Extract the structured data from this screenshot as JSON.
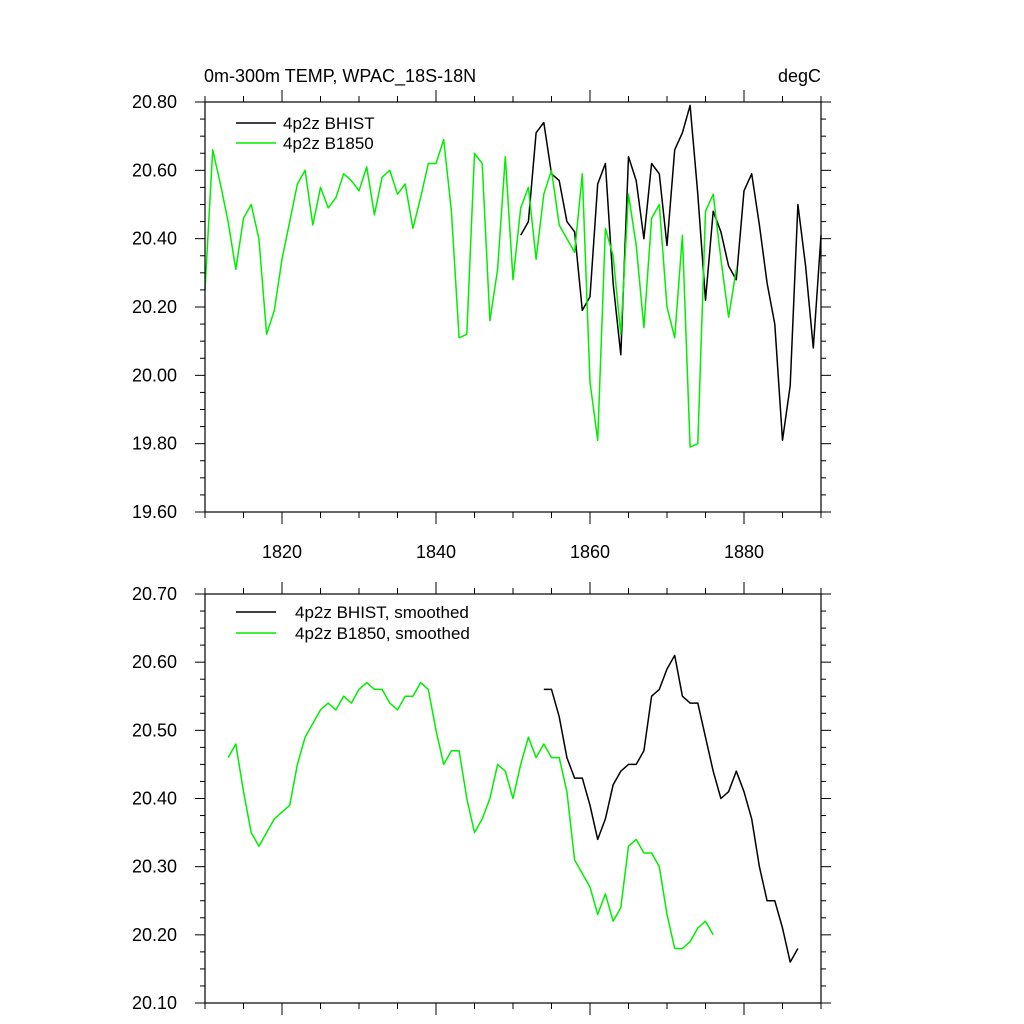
{
  "chart_data": [
    {
      "type": "line",
      "title_left": "0m-300m TEMP, WPAC_18S-18N",
      "title_right": "degC",
      "xlim": [
        1810,
        1890
      ],
      "ylim": [
        19.6,
        20.8
      ],
      "x_ticks": [
        1820,
        1840,
        1860,
        1880
      ],
      "x_tick_labels": [
        "1820",
        "1840",
        "1860",
        "1880"
      ],
      "y_ticks": [
        19.6,
        19.8,
        20.0,
        20.2,
        20.4,
        20.6,
        20.8
      ],
      "y_tick_labels": [
        "19.60",
        "19.80",
        "20.00",
        "20.20",
        "20.40",
        "20.60",
        "20.80"
      ],
      "legend_position": "top-left",
      "series": [
        {
          "name": "4p2z BHIST",
          "color": "#000000",
          "x": [
            1851,
            1852,
            1853,
            1854,
            1855,
            1856,
            1857,
            1858,
            1859,
            1860,
            1861,
            1862,
            1863,
            1864,
            1865,
            1866,
            1867,
            1868,
            1869,
            1870,
            1871,
            1872,
            1873,
            1874,
            1875,
            1876,
            1877,
            1878,
            1879,
            1880,
            1881,
            1882,
            1883,
            1884,
            1885,
            1886,
            1887,
            1888,
            1889,
            1890
          ],
          "y": [
            20.41,
            20.45,
            20.71,
            20.74,
            20.59,
            20.57,
            20.45,
            20.42,
            20.19,
            20.23,
            20.56,
            20.62,
            20.27,
            20.06,
            20.64,
            20.57,
            20.4,
            20.62,
            20.59,
            20.38,
            20.66,
            20.71,
            20.79,
            20.53,
            20.22,
            20.48,
            20.42,
            20.32,
            20.28,
            20.54,
            20.59,
            20.44,
            20.27,
            20.15,
            19.81,
            19.97,
            20.5,
            20.32,
            20.08,
            20.41
          ]
        },
        {
          "name": "4p2z B1850",
          "color": "#00ee00",
          "x": [
            1810,
            1811,
            1812,
            1813,
            1814,
            1815,
            1816,
            1817,
            1818,
            1819,
            1820,
            1821,
            1822,
            1823,
            1824,
            1825,
            1826,
            1827,
            1828,
            1829,
            1830,
            1831,
            1832,
            1833,
            1834,
            1835,
            1836,
            1837,
            1838,
            1839,
            1840,
            1841,
            1842,
            1843,
            1844,
            1845,
            1846,
            1847,
            1848,
            1849,
            1850,
            1851,
            1852,
            1853,
            1854,
            1855,
            1856,
            1857,
            1858,
            1859,
            1860,
            1861,
            1862,
            1863,
            1864,
            1865,
            1866,
            1867,
            1868,
            1869,
            1870,
            1871,
            1872,
            1873,
            1874,
            1875,
            1876,
            1877,
            1878,
            1879
          ],
          "y": [
            20.25,
            20.66,
            20.56,
            20.45,
            20.31,
            20.46,
            20.5,
            20.4,
            20.12,
            20.19,
            20.34,
            20.45,
            20.56,
            20.6,
            20.44,
            20.55,
            20.49,
            20.52,
            20.59,
            20.57,
            20.54,
            20.61,
            20.47,
            20.58,
            20.6,
            20.53,
            20.56,
            20.43,
            20.52,
            20.62,
            20.62,
            20.69,
            20.48,
            20.11,
            20.12,
            20.65,
            20.62,
            20.16,
            20.31,
            20.64,
            20.28,
            20.49,
            20.55,
            20.34,
            20.53,
            20.6,
            20.44,
            20.4,
            20.36,
            20.59,
            19.98,
            19.81,
            20.43,
            20.35,
            20.12,
            20.53,
            20.38,
            20.14,
            20.46,
            20.5,
            20.2,
            20.11,
            20.41,
            19.79,
            19.8,
            20.48,
            20.53,
            20.34,
            20.17,
            20.31
          ]
        }
      ]
    },
    {
      "type": "line",
      "xlim": [
        1810,
        1890
      ],
      "ylim": [
        20.1,
        20.7
      ],
      "x_ticks": [
        1820,
        1840,
        1860,
        1880
      ],
      "y_ticks": [
        20.1,
        20.2,
        20.3,
        20.4,
        20.5,
        20.6,
        20.7
      ],
      "y_tick_labels": [
        "20.10",
        "20.20",
        "20.30",
        "20.40",
        "20.50",
        "20.60",
        "20.70"
      ],
      "legend_position": "top-left",
      "series": [
        {
          "name": "4p2z BHIST, smoothed",
          "color": "#000000",
          "x": [
            1854,
            1855,
            1856,
            1857,
            1858,
            1859,
            1860,
            1861,
            1862,
            1863,
            1864,
            1865,
            1866,
            1867,
            1868,
            1869,
            1870,
            1871,
            1872,
            1873,
            1874,
            1875,
            1876,
            1877,
            1878,
            1879,
            1880,
            1881,
            1882,
            1883,
            1884,
            1885,
            1886,
            1887
          ],
          "y": [
            20.56,
            20.56,
            20.52,
            20.46,
            20.43,
            20.43,
            20.39,
            20.34,
            20.37,
            20.42,
            20.44,
            20.45,
            20.45,
            20.47,
            20.55,
            20.56,
            20.59,
            20.61,
            20.55,
            20.54,
            20.54,
            20.49,
            20.44,
            20.4,
            20.41,
            20.44,
            20.41,
            20.37,
            20.3,
            20.25,
            20.25,
            20.21,
            20.16,
            20.18
          ]
        },
        {
          "name": "4p2z B1850, smoothed",
          "color": "#00ee00",
          "x": [
            1813,
            1814,
            1815,
            1816,
            1817,
            1818,
            1819,
            1820,
            1821,
            1822,
            1823,
            1824,
            1825,
            1826,
            1827,
            1828,
            1829,
            1830,
            1831,
            1832,
            1833,
            1834,
            1835,
            1836,
            1837,
            1838,
            1839,
            1840,
            1841,
            1842,
            1843,
            1844,
            1845,
            1846,
            1847,
            1848,
            1849,
            1850,
            1851,
            1852,
            1853,
            1854,
            1855,
            1856,
            1857,
            1858,
            1859,
            1860,
            1861,
            1862,
            1863,
            1864,
            1865,
            1866,
            1867,
            1868,
            1869,
            1870,
            1871,
            1872,
            1873,
            1874,
            1875,
            1876
          ],
          "y": [
            20.46,
            20.48,
            20.41,
            20.35,
            20.33,
            20.35,
            20.37,
            20.38,
            20.39,
            20.45,
            20.49,
            20.51,
            20.53,
            20.54,
            20.53,
            20.55,
            20.54,
            20.56,
            20.57,
            20.56,
            20.56,
            20.54,
            20.53,
            20.55,
            20.55,
            20.57,
            20.56,
            20.5,
            20.45,
            20.47,
            20.47,
            20.4,
            20.35,
            20.37,
            20.4,
            20.45,
            20.44,
            20.4,
            20.45,
            20.49,
            20.46,
            20.48,
            20.46,
            20.46,
            20.41,
            20.31,
            20.29,
            20.27,
            20.23,
            20.26,
            20.22,
            20.24,
            20.33,
            20.34,
            20.32,
            20.32,
            20.3,
            20.23,
            20.18,
            20.18,
            20.19,
            20.21,
            20.22,
            20.2
          ]
        }
      ]
    }
  ]
}
